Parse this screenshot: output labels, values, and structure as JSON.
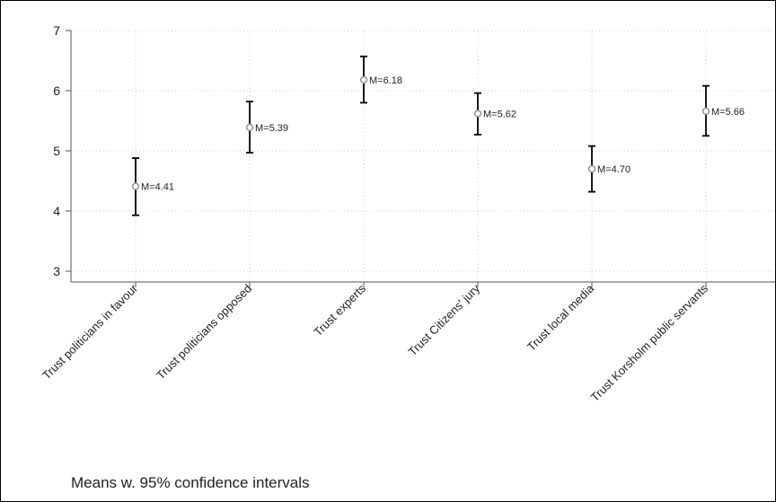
{
  "chart_data": {
    "type": "scatter",
    "subtype": "means with error bars",
    "categories": [
      "Trust politicians in favour",
      "Trust politicians opposed",
      "Trust experts",
      "Trust Citizens' jury",
      "Trust local media",
      "Trust Korsholm public servants"
    ],
    "means": [
      4.41,
      5.39,
      6.18,
      5.62,
      4.7,
      5.66
    ],
    "mean_labels": [
      "M=4.41",
      "M=5.39",
      "M=6.18",
      "M=5.62",
      "M=4.70",
      "M=5.66"
    ],
    "ci_lower": [
      3.93,
      4.97,
      5.8,
      5.27,
      4.32,
      5.25
    ],
    "ci_upper": [
      4.88,
      5.82,
      6.57,
      5.96,
      5.08,
      6.08
    ],
    "ylim": [
      3,
      7
    ],
    "yticks": [
      "3",
      "4",
      "5",
      "6",
      "7"
    ],
    "grid": true,
    "note": "Means w. 95% confidence intervals",
    "colors": {
      "marker": "#9a9a9a",
      "errorbar": "#000000",
      "grid": "#cfcfcf"
    }
  }
}
